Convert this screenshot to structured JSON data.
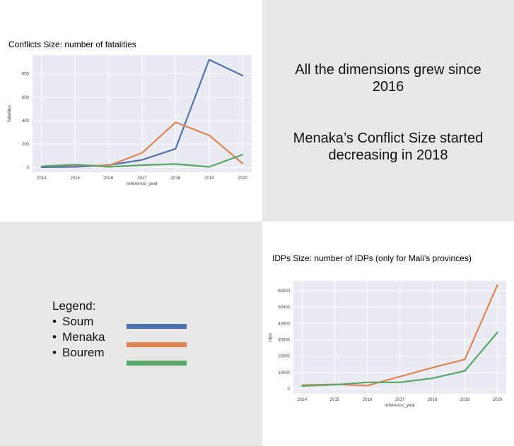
{
  "colors": {
    "soum": "#4c72b0",
    "menaka": "#dd8452",
    "bourem": "#55a868"
  },
  "notes": {
    "line1": "All the dimensions grew since",
    "line2": "2016",
    "line3": "Menaka’s Conflict Size started",
    "line4": "decreasing in 2018"
  },
  "legend": {
    "title": "Legend:",
    "bullet": "•",
    "items": [
      "Soum",
      "Menaka",
      "Bourem"
    ]
  },
  "chart_data": [
    {
      "type": "line",
      "title": "Conflicts Size: number of fatalities",
      "xlabel": "reference_year",
      "ylabel": "fatalities",
      "x": [
        2014,
        2015,
        2016,
        2017,
        2018,
        2019,
        2020
      ],
      "x_ticks": [
        "2014",
        "2015",
        "2016",
        "2017",
        "2018",
        "2019",
        "2020"
      ],
      "y_ticks": [
        "0",
        "200",
        "400",
        "600",
        "800"
      ],
      "ylim": [
        -40,
        960
      ],
      "grid": true,
      "series": [
        {
          "name": "Soum",
          "color": "#4c72b0",
          "values": [
            3,
            5,
            20,
            65,
            160,
            920,
            785
          ]
        },
        {
          "name": "Menaka",
          "color": "#dd8452",
          "values": [
            10,
            20,
            15,
            125,
            385,
            275,
            35
          ]
        },
        {
          "name": "Bourem",
          "color": "#55a868",
          "values": [
            10,
            25,
            5,
            20,
            30,
            5,
            110
          ]
        }
      ]
    },
    {
      "type": "line",
      "title": "IDPs Size: number of IDPs (only for Mali’s provinces)",
      "xlabel": "reference_year",
      "ylabel": "idps",
      "x": [
        2014,
        2015,
        2016,
        2017,
        2018,
        2019,
        2020
      ],
      "x_ticks": [
        "2014",
        "2015",
        "2016",
        "2017",
        "2018",
        "2019",
        "2020"
      ],
      "y_ticks": [
        "0",
        "10000",
        "20000",
        "30000",
        "40000",
        "50000",
        "60000"
      ],
      "ylim": [
        -3000,
        66000
      ],
      "grid": true,
      "series": [
        {
          "name": "Menaka",
          "color": "#dd8452",
          "values": [
            2300,
            2800,
            2000,
            7500,
            13000,
            18000,
            63500
          ]
        },
        {
          "name": "Bourem",
          "color": "#55a868",
          "values": [
            1800,
            2500,
            4000,
            4000,
            6500,
            11000,
            34500
          ]
        }
      ]
    }
  ]
}
